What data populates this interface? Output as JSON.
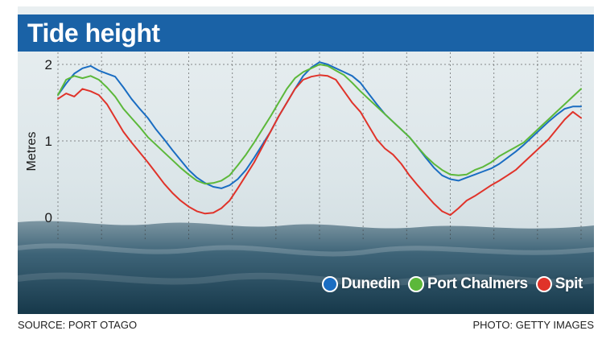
{
  "title": "Tide height",
  "source": "SOURCE: PORT OTAGO",
  "photo_credit": "PHOTO: GETTY IMAGES",
  "colors": {
    "title_bar": "#1a62a6",
    "dunedin": "#1a6dc2",
    "port_chalmers": "#5cb83a",
    "spit": "#e0332a"
  },
  "chart_data": {
    "type": "line",
    "title": "Tide height",
    "ylabel": "Metres",
    "xlabel": "",
    "ylim": [
      0,
      2
    ],
    "yticks": [
      "2",
      "1",
      "0"
    ],
    "grid": true,
    "legend_position": "bottom-right",
    "x": [
      0,
      1,
      2,
      3,
      4,
      5,
      6,
      7,
      8,
      9,
      10,
      11,
      12,
      13,
      14,
      15,
      16,
      17,
      18,
      19,
      20,
      21,
      22,
      23,
      24,
      25,
      26,
      27,
      28,
      29,
      30,
      31,
      32,
      33,
      34,
      35,
      36,
      37,
      38,
      39,
      40,
      41,
      42,
      43,
      44,
      45,
      46,
      47,
      48,
      49,
      50,
      51,
      52,
      53,
      54,
      55,
      56,
      57,
      58,
      59,
      60,
      61,
      62,
      63,
      64
    ],
    "series": [
      {
        "name": "Dunedin",
        "color": "#1a6dc2",
        "values": [
          1.6,
          1.75,
          1.88,
          1.95,
          1.98,
          1.92,
          1.88,
          1.84,
          1.7,
          1.55,
          1.42,
          1.3,
          1.15,
          1.02,
          0.88,
          0.75,
          0.62,
          0.52,
          0.45,
          0.4,
          0.38,
          0.42,
          0.5,
          0.62,
          0.78,
          0.95,
          1.12,
          1.32,
          1.5,
          1.68,
          1.85,
          1.96,
          2.03,
          2.0,
          1.95,
          1.9,
          1.85,
          1.76,
          1.62,
          1.48,
          1.35,
          1.25,
          1.15,
          1.05,
          0.92,
          0.78,
          0.65,
          0.55,
          0.5,
          0.48,
          0.52,
          0.56,
          0.6,
          0.64,
          0.7,
          0.78,
          0.86,
          0.95,
          1.05,
          1.15,
          1.25,
          1.34,
          1.42,
          1.45,
          1.45
        ]
      },
      {
        "name": "Port Chalmers",
        "color": "#5cb83a",
        "values": [
          1.6,
          1.8,
          1.85,
          1.82,
          1.85,
          1.8,
          1.7,
          1.58,
          1.42,
          1.3,
          1.18,
          1.05,
          0.95,
          0.85,
          0.75,
          0.65,
          0.56,
          0.48,
          0.44,
          0.45,
          0.48,
          0.55,
          0.68,
          0.82,
          0.98,
          1.15,
          1.32,
          1.5,
          1.68,
          1.82,
          1.9,
          1.95,
          2.0,
          1.98,
          1.92,
          1.86,
          1.76,
          1.65,
          1.55,
          1.45,
          1.35,
          1.25,
          1.15,
          1.05,
          0.92,
          0.8,
          0.7,
          0.62,
          0.56,
          0.55,
          0.56,
          0.62,
          0.66,
          0.72,
          0.8,
          0.86,
          0.92,
          0.98,
          1.08,
          1.18,
          1.28,
          1.38,
          1.48,
          1.58,
          1.68
        ]
      },
      {
        "name": "Spit",
        "color": "#e0332a",
        "values": [
          1.55,
          1.62,
          1.58,
          1.68,
          1.65,
          1.6,
          1.48,
          1.3,
          1.12,
          0.98,
          0.85,
          0.72,
          0.58,
          0.44,
          0.32,
          0.22,
          0.14,
          0.08,
          0.05,
          0.06,
          0.12,
          0.22,
          0.38,
          0.55,
          0.72,
          0.92,
          1.12,
          1.32,
          1.5,
          1.68,
          1.8,
          1.84,
          1.86,
          1.85,
          1.8,
          1.65,
          1.5,
          1.38,
          1.2,
          1.02,
          0.9,
          0.82,
          0.7,
          0.55,
          0.42,
          0.3,
          0.18,
          0.08,
          0.03,
          0.12,
          0.22,
          0.28,
          0.35,
          0.42,
          0.48,
          0.55,
          0.62,
          0.72,
          0.82,
          0.92,
          1.02,
          1.15,
          1.28,
          1.38,
          1.3
        ]
      }
    ]
  }
}
